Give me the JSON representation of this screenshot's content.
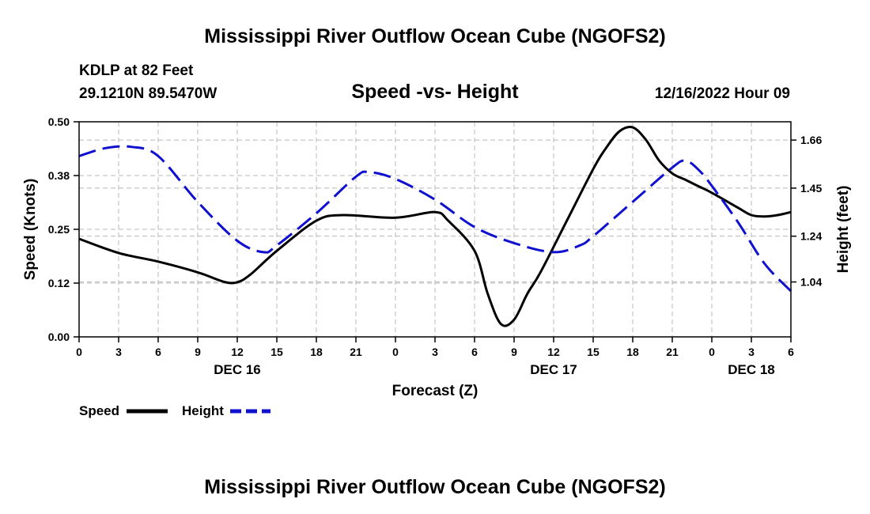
{
  "chart_data": {
    "type": "line",
    "title": "Mississippi River Outflow Ocean Cube (NGOFS2)",
    "subtitle": "Speed -vs- Height",
    "footer_title": "Mississippi River Outflow Ocean Cube (NGOFS2)",
    "station": "KDLP at 82 Feet",
    "location": "29.1210N  89.5470W",
    "datetime": "12/16/2022 Hour 09",
    "xlabel": "Forecast (Z)",
    "ylabel_left": "Speed (Knots)",
    "ylabel_right": "Height (feet)",
    "x_range_hours": [
      0,
      54
    ],
    "x_tick_labels": [
      "0",
      "3",
      "6",
      "9",
      "12",
      "15",
      "18",
      "21",
      "0",
      "3",
      "6",
      "9",
      "12",
      "15",
      "18",
      "21",
      "0",
      "3",
      "6"
    ],
    "date_labels": [
      {
        "label": "DEC 16",
        "hour": 12
      },
      {
        "label": "DEC 17",
        "hour": 36
      },
      {
        "label": "DEC 18",
        "hour": 51
      }
    ],
    "y_left": {
      "range": [
        0,
        0.5
      ],
      "ticks": [
        0.0,
        0.125,
        0.25,
        0.375,
        0.5
      ],
      "tick_labels": [
        "0.00",
        "0.12",
        "0.25",
        "0.38",
        "0.50"
      ]
    },
    "y_right": {
      "range": [
        0.8,
        1.74
      ],
      "ticks": [
        1.04,
        1.24,
        1.45,
        1.66
      ],
      "tick_labels": [
        "1.04",
        "1.24",
        "1.45",
        "1.66"
      ]
    },
    "legend": [
      {
        "name": "Speed",
        "color": "#000000",
        "style": "solid"
      },
      {
        "name": "Height",
        "color": "#1010d0",
        "style": "dashed"
      }
    ],
    "series": [
      {
        "name": "Speed",
        "axis": "left",
        "color": "#000000",
        "x": [
          0,
          3,
          6,
          9,
          11,
          12,
          13,
          15,
          18,
          20,
          24,
          27,
          28,
          30,
          31,
          32,
          33,
          34,
          35,
          37,
          39,
          40,
          41,
          42,
          43,
          44,
          45,
          46,
          47,
          48,
          50,
          51,
          52,
          53,
          54
        ],
        "y": [
          0.228,
          0.195,
          0.175,
          0.15,
          0.128,
          0.127,
          0.145,
          0.2,
          0.27,
          0.283,
          0.277,
          0.29,
          0.27,
          0.2,
          0.1,
          0.03,
          0.04,
          0.1,
          0.15,
          0.27,
          0.39,
          0.44,
          0.478,
          0.487,
          0.458,
          0.41,
          0.38,
          0.365,
          0.35,
          0.335,
          0.3,
          0.283,
          0.28,
          0.283,
          0.29
        ]
      },
      {
        "name": "Height",
        "axis": "right",
        "color": "#1010d0",
        "x": [
          0,
          2,
          4,
          6,
          9,
          12,
          14,
          15,
          18,
          21,
          22,
          24,
          27,
          30,
          33,
          36,
          38,
          39,
          42,
          45,
          46,
          47,
          48,
          50,
          52,
          54
        ],
        "y": [
          1.59,
          1.625,
          1.63,
          1.59,
          1.39,
          1.22,
          1.17,
          1.2,
          1.34,
          1.5,
          1.52,
          1.49,
          1.4,
          1.28,
          1.21,
          1.17,
          1.2,
          1.24,
          1.39,
          1.54,
          1.57,
          1.53,
          1.46,
          1.3,
          1.12,
          1.0
        ]
      }
    ]
  }
}
